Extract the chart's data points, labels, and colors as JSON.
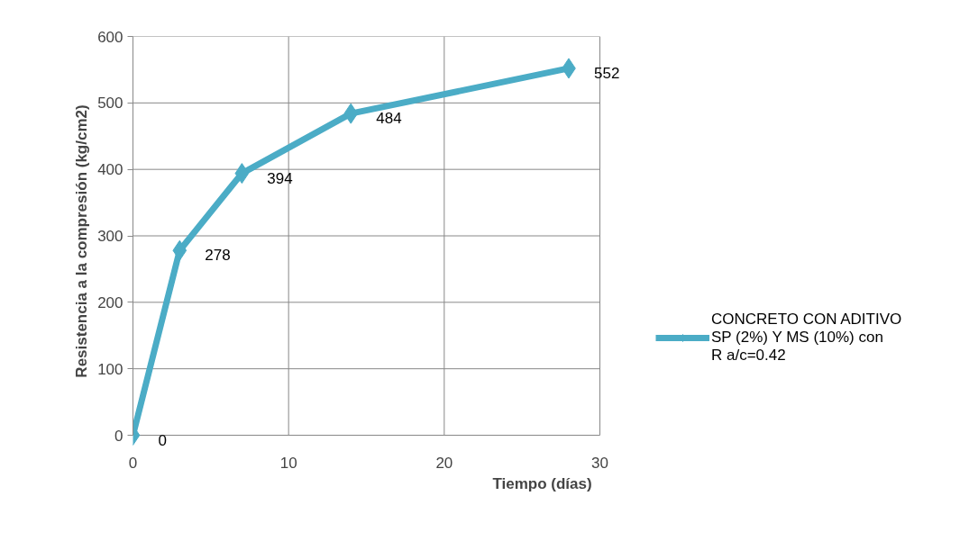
{
  "chart_data": {
    "type": "line",
    "xlabel": "Tiempo (días)",
    "ylabel": "Resistencia a la compresión (kg/cm2)",
    "x": [
      0,
      3,
      7,
      14,
      28
    ],
    "series": [
      {
        "name": "CONCRETO CON ADITIVO SP (2%) Y MS (10%) con R a/c=0.42",
        "color": "#4bacc6",
        "values": [
          0,
          278,
          394,
          484,
          552
        ]
      }
    ],
    "xlim": [
      0,
      30
    ],
    "xticks": [
      0,
      10,
      20,
      30
    ],
    "ylim": [
      0,
      600
    ],
    "yticks": [
      0,
      100,
      200,
      300,
      400,
      500,
      600
    ],
    "grid": true,
    "legend": "right",
    "marker": "diamond",
    "line_style": "solid",
    "data_labels": true
  }
}
